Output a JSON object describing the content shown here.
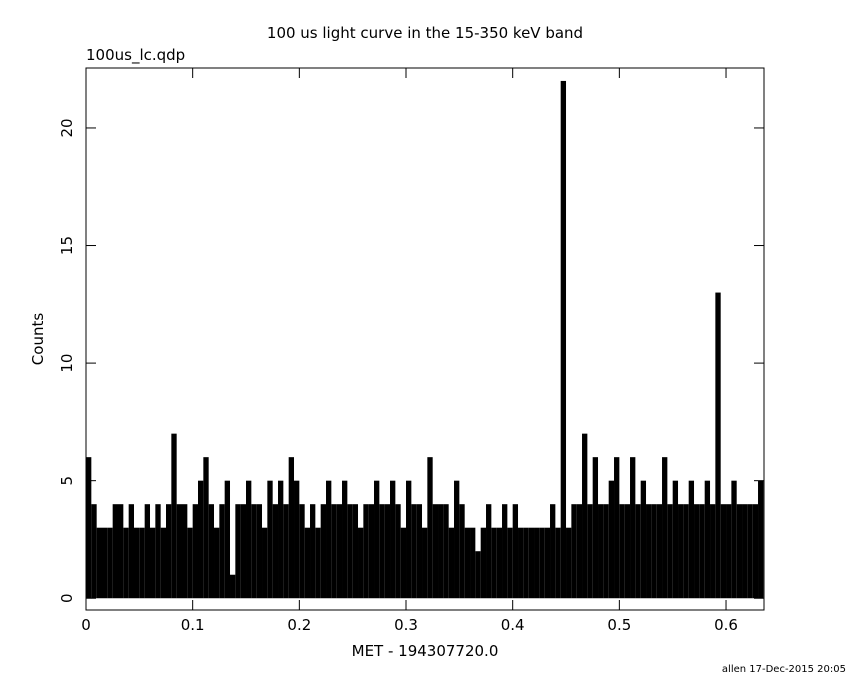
{
  "chart_data": {
    "type": "histogram-line",
    "title": "100 us light curve in the 15-350 keV band",
    "subtitle": "100us_lc.qdp",
    "x_label": "MET - 194307720.0",
    "y_label": "Counts",
    "footer": "allen 17-Dec-2015 20:05",
    "color": "#000000",
    "xlim": [
      0,
      0.6356
    ],
    "ylim": [
      -0.5,
      22.55
    ],
    "xticks": [
      0,
      0.1,
      0.2,
      0.3,
      0.4,
      0.5,
      0.6
    ],
    "yticks": [
      0,
      5,
      10,
      15,
      20
    ],
    "x": [
      0,
      0.005,
      0.01,
      0.015,
      0.02,
      0.025,
      0.03,
      0.035,
      0.04,
      0.045,
      0.05,
      0.055,
      0.06,
      0.065,
      0.07,
      0.075,
      0.08,
      0.085,
      0.09,
      0.095,
      0.1,
      0.105,
      0.11,
      0.115,
      0.12,
      0.125,
      0.13,
      0.135,
      0.14,
      0.145,
      0.15,
      0.155,
      0.16,
      0.165,
      0.17,
      0.175,
      0.18,
      0.185,
      0.19,
      0.195,
      0.2,
      0.205,
      0.21,
      0.215,
      0.22,
      0.225,
      0.23,
      0.235,
      0.24,
      0.245,
      0.25,
      0.255,
      0.26,
      0.265,
      0.27,
      0.275,
      0.28,
      0.285,
      0.29,
      0.295,
      0.3,
      0.305,
      0.31,
      0.315,
      0.32,
      0.325,
      0.33,
      0.335,
      0.34,
      0.345,
      0.35,
      0.355,
      0.36,
      0.365,
      0.37,
      0.375,
      0.38,
      0.385,
      0.39,
      0.395,
      0.4,
      0.405,
      0.41,
      0.415,
      0.42,
      0.425,
      0.43,
      0.435,
      0.44,
      0.445,
      0.45,
      0.455,
      0.46,
      0.465,
      0.47,
      0.475,
      0.48,
      0.485,
      0.49,
      0.495,
      0.5,
      0.505,
      0.51,
      0.515,
      0.52,
      0.525,
      0.53,
      0.535,
      0.54,
      0.545,
      0.55,
      0.555,
      0.56,
      0.565,
      0.57,
      0.575,
      0.58,
      0.585,
      0.59,
      0.595,
      0.6,
      0.605,
      0.61,
      0.615,
      0.62,
      0.625,
      0.63,
      0.635
    ],
    "values": [
      6,
      4,
      3,
      3,
      3,
      4,
      4,
      3,
      4,
      3,
      3,
      4,
      3,
      4,
      3,
      4,
      7,
      4,
      4,
      3,
      4,
      5,
      6,
      4,
      3,
      4,
      5,
      1,
      4,
      4,
      5,
      4,
      4,
      3,
      5,
      4,
      5,
      4,
      6,
      5,
      4,
      3,
      4,
      3,
      4,
      5,
      4,
      4,
      5,
      4,
      4,
      3,
      4,
      4,
      5,
      4,
      4,
      5,
      4,
      3,
      5,
      4,
      4,
      3,
      6,
      4,
      4,
      4,
      3,
      5,
      4,
      3,
      3,
      2,
      3,
      4,
      3,
      3,
      4,
      3,
      4,
      3,
      3,
      3,
      3,
      3,
      3,
      4,
      3,
      22,
      3,
      4,
      4,
      7,
      4,
      6,
      4,
      4,
      5,
      6,
      4,
      4,
      6,
      4,
      5,
      4,
      4,
      4,
      6,
      4,
      5,
      4,
      4,
      5,
      4,
      4,
      5,
      4,
      13,
      4,
      4,
      5,
      4,
      4,
      4,
      4,
      5,
      5
    ]
  }
}
